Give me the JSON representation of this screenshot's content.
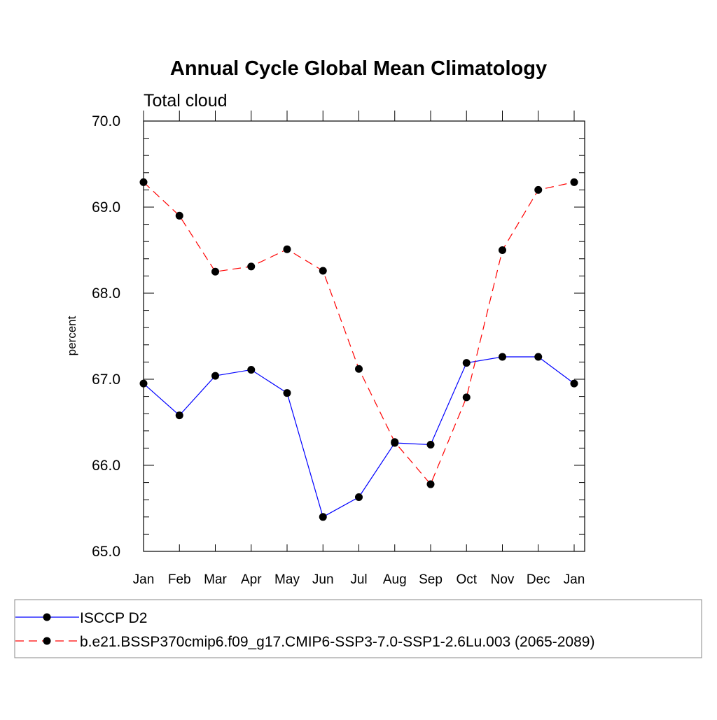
{
  "chart_data": {
    "type": "line",
    "title": "Annual Cycle Global Mean Climatology",
    "subtitle": "Total cloud",
    "xlabel": "",
    "ylabel": "percent",
    "categories": [
      "Jan",
      "Feb",
      "Mar",
      "Apr",
      "May",
      "Jun",
      "Jul",
      "Aug",
      "Sep",
      "Oct",
      "Nov",
      "Dec",
      "Jan"
    ],
    "ylim": [
      65.0,
      70.0
    ],
    "yticks": [
      "65.0",
      "66.0",
      "67.0",
      "68.0",
      "69.0",
      "70.0"
    ],
    "grid": false,
    "legend_position": "bottom",
    "series": [
      {
        "name": "ISCCP D2",
        "color": "#0000ff",
        "line_style": "solid",
        "marker": "filled-circle",
        "values": [
          66.95,
          66.58,
          67.04,
          67.11,
          66.84,
          65.4,
          65.63,
          66.26,
          66.24,
          67.19,
          67.26,
          67.26,
          66.95
        ]
      },
      {
        "name": "b.e21.BSSP370cmip6.f09_g17.CMIP6-SSP3-7.0-SSP1-2.6Lu.003 (2065-2089)",
        "color": "#ff0000",
        "line_style": "dashed",
        "marker": "filled-circle",
        "values": [
          69.29,
          68.9,
          68.25,
          68.31,
          68.51,
          68.26,
          67.12,
          66.27,
          65.78,
          66.79,
          68.5,
          69.2,
          69.29
        ]
      }
    ]
  }
}
